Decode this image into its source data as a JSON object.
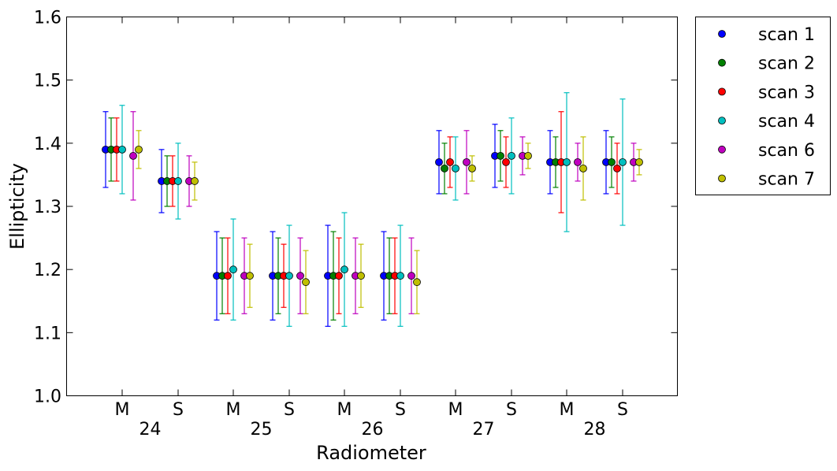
{
  "chart_data": {
    "type": "scatter",
    "title": "",
    "xlabel": "Radiometer",
    "ylabel": "Ellipticity",
    "ylim": [
      1.0,
      1.6
    ],
    "yticks": [
      "1.0",
      "1.1",
      "1.2",
      "1.3",
      "1.4",
      "1.5",
      "1.6"
    ],
    "groups": [
      {
        "radiometer": "24",
        "channels": [
          "M",
          "S"
        ]
      },
      {
        "radiometer": "25",
        "channels": [
          "M",
          "S"
        ]
      },
      {
        "radiometer": "26",
        "channels": [
          "M",
          "S"
        ]
      },
      {
        "radiometer": "27",
        "channels": [
          "M",
          "S"
        ]
      },
      {
        "radiometer": "28",
        "channels": [
          "M",
          "S"
        ]
      }
    ],
    "categories": [
      "24 M",
      "24 S",
      "25 M",
      "25 S",
      "26 M",
      "26 S",
      "27 M",
      "27 S",
      "28 M",
      "28 S"
    ],
    "grid": false,
    "legend_position": "outside-right-top",
    "series": [
      {
        "name": "scan 1",
        "color": "#0000ff",
        "values": [
          1.39,
          1.34,
          1.19,
          1.19,
          1.19,
          1.19,
          1.37,
          1.38,
          1.37,
          1.37
        ],
        "err_low": [
          1.33,
          1.29,
          1.12,
          1.12,
          1.11,
          1.12,
          1.32,
          1.33,
          1.32,
          1.32
        ],
        "err_high": [
          1.45,
          1.39,
          1.26,
          1.26,
          1.27,
          1.26,
          1.42,
          1.43,
          1.42,
          1.42
        ]
      },
      {
        "name": "scan 2",
        "color": "#008000",
        "values": [
          1.39,
          1.34,
          1.19,
          1.19,
          1.19,
          1.19,
          1.36,
          1.38,
          1.37,
          1.37
        ],
        "err_low": [
          1.34,
          1.3,
          1.13,
          1.13,
          1.12,
          1.13,
          1.32,
          1.34,
          1.33,
          1.33
        ],
        "err_high": [
          1.44,
          1.38,
          1.25,
          1.25,
          1.26,
          1.25,
          1.4,
          1.42,
          1.41,
          1.41
        ]
      },
      {
        "name": "scan 3",
        "color": "#ff0000",
        "values": [
          1.39,
          1.34,
          1.19,
          1.19,
          1.19,
          1.19,
          1.37,
          1.37,
          1.37,
          1.36
        ],
        "err_low": [
          1.34,
          1.3,
          1.13,
          1.14,
          1.13,
          1.13,
          1.33,
          1.33,
          1.29,
          1.32
        ],
        "err_high": [
          1.44,
          1.38,
          1.25,
          1.24,
          1.25,
          1.25,
          1.41,
          1.41,
          1.45,
          1.4
        ]
      },
      {
        "name": "scan 4",
        "color": "#00bfbf",
        "values": [
          1.39,
          1.34,
          1.2,
          1.19,
          1.2,
          1.19,
          1.36,
          1.38,
          1.37,
          1.37
        ],
        "err_low": [
          1.32,
          1.28,
          1.12,
          1.11,
          1.11,
          1.11,
          1.31,
          1.32,
          1.26,
          1.27
        ],
        "err_high": [
          1.46,
          1.4,
          1.28,
          1.27,
          1.29,
          1.27,
          1.41,
          1.44,
          1.48,
          1.47
        ]
      },
      {
        "name": "scan 6",
        "color": "#bf00bf",
        "values": [
          1.38,
          1.34,
          1.19,
          1.19,
          1.19,
          1.19,
          1.37,
          1.38,
          1.37,
          1.37
        ],
        "err_low": [
          1.31,
          1.3,
          1.13,
          1.13,
          1.13,
          1.13,
          1.32,
          1.35,
          1.34,
          1.34
        ],
        "err_high": [
          1.45,
          1.38,
          1.25,
          1.25,
          1.25,
          1.25,
          1.42,
          1.41,
          1.4,
          1.4
        ]
      },
      {
        "name": "scan 7",
        "color": "#bfbf00",
        "values": [
          1.39,
          1.34,
          1.19,
          1.18,
          1.19,
          1.18,
          1.36,
          1.38,
          1.36,
          1.37
        ],
        "err_low": [
          1.36,
          1.31,
          1.14,
          1.13,
          1.14,
          1.13,
          1.34,
          1.36,
          1.31,
          1.35
        ],
        "err_high": [
          1.42,
          1.37,
          1.24,
          1.23,
          1.24,
          1.23,
          1.38,
          1.4,
          1.41,
          1.39
        ]
      }
    ]
  }
}
